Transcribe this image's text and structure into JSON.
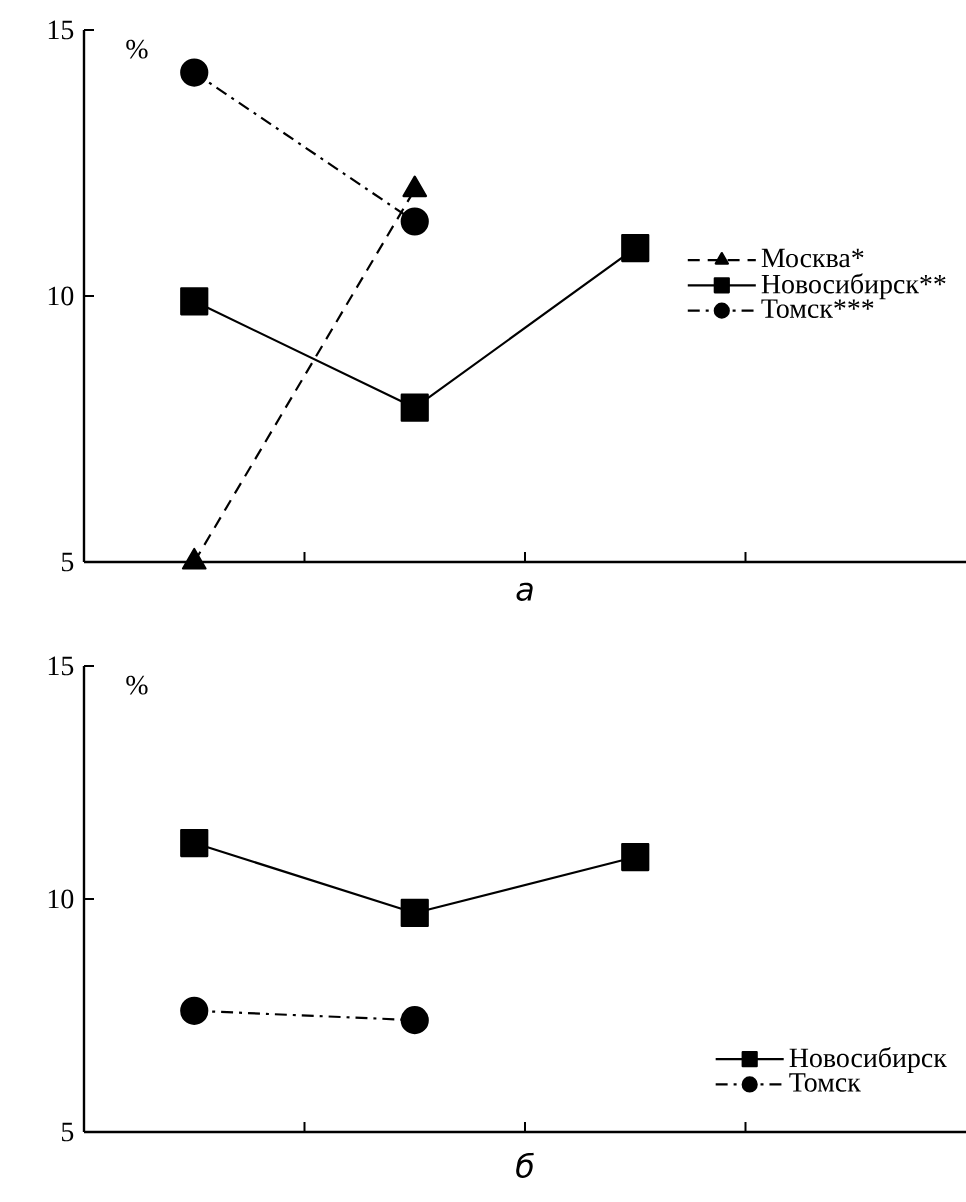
{
  "chart_data": [
    {
      "type": "line",
      "xlabel": "а",
      "ylabel": "%",
      "categories": [
        null,
        null,
        null,
        null
      ],
      "ylim": [
        5,
        15
      ],
      "yticks": [
        5,
        10,
        15
      ],
      "legend": "right",
      "grid": false,
      "series": [
        {
          "name": "Москва*",
          "color": "#000000",
          "marker": "triangle",
          "line_style": "dashed",
          "values": [
            5.0,
            12.0,
            null,
            null
          ]
        },
        {
          "name": "Новосибирск**",
          "color": "#000000",
          "marker": "square",
          "line_style": "solid",
          "values": [
            9.9,
            7.9,
            10.9,
            null
          ]
        },
        {
          "name": "Томск***",
          "color": "#000000",
          "marker": "circle",
          "line_style": "dashdot",
          "values": [
            14.2,
            11.4,
            null,
            null
          ]
        }
      ]
    },
    {
      "type": "line",
      "xlabel": "б",
      "ylabel": "%",
      "categories": [
        null,
        null,
        null,
        null
      ],
      "ylim": [
        5,
        15
      ],
      "yticks": [
        5,
        10,
        15
      ],
      "legend": "bottom right",
      "grid": false,
      "series": [
        {
          "name": "Новосибирск",
          "color": "#000000",
          "marker": "square",
          "line_style": "solid",
          "values": [
            11.2,
            9.7,
            10.9,
            null
          ]
        },
        {
          "name": "Томск",
          "color": "#000000",
          "marker": "circle",
          "line_style": "dashdot",
          "values": [
            7.6,
            7.4,
            null,
            null
          ]
        }
      ]
    }
  ]
}
